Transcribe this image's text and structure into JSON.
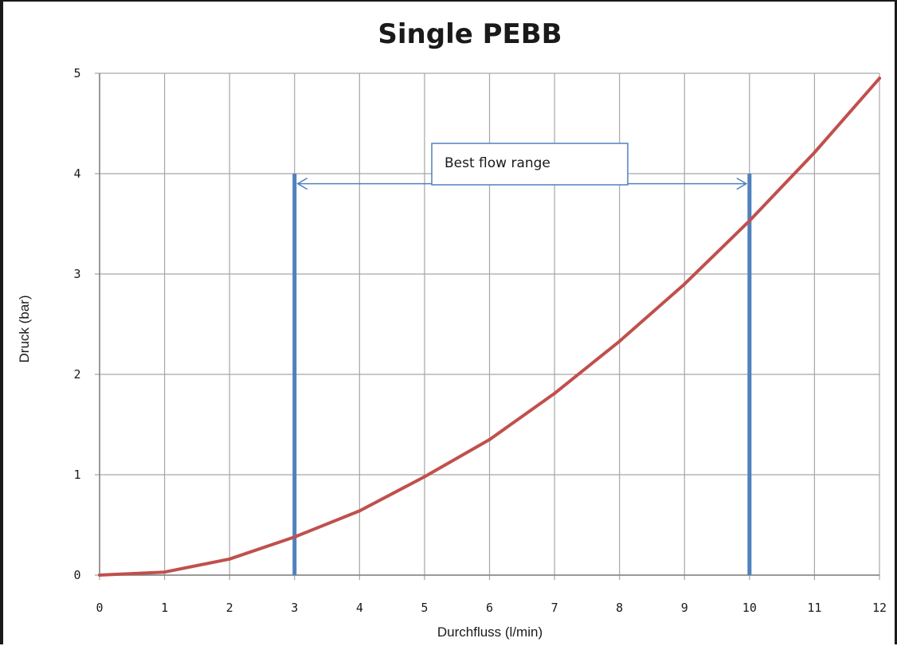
{
  "colors": {
    "curve": "#c0504d",
    "marker": "#4f81bd",
    "grid": "#a6a6a6",
    "annotation_border": "#4f81bd"
  },
  "chart_data": {
    "type": "line",
    "title": "Single PEBB",
    "xlabel": "Durchfluss (l/min)",
    "ylabel": "Druck (bar)",
    "xlim": [
      0,
      12
    ],
    "ylim": [
      0,
      5
    ],
    "x_ticks": [
      "0",
      "1",
      "2",
      "3",
      "4",
      "5",
      "6",
      "7",
      "8",
      "9",
      "10",
      "11",
      "12"
    ],
    "y_ticks": [
      "0",
      "1",
      "2",
      "3",
      "4",
      "5"
    ],
    "grid": true,
    "series": [
      {
        "x": [
          0,
          1,
          2,
          3,
          4,
          5,
          6,
          7,
          8,
          9,
          10,
          11,
          12
        ],
        "values": [
          0,
          0.03,
          0.16,
          0.38,
          0.64,
          0.98,
          1.35,
          1.81,
          2.33,
          2.9,
          3.53,
          4.21,
          4.95
        ]
      }
    ],
    "vertical_markers": [
      {
        "x": 3,
        "y_top": 4
      },
      {
        "x": 10,
        "y_top": 4
      }
    ],
    "annotation": {
      "text": "Best flow range",
      "x_start": 3,
      "x_end": 10,
      "y": 3.9
    }
  }
}
